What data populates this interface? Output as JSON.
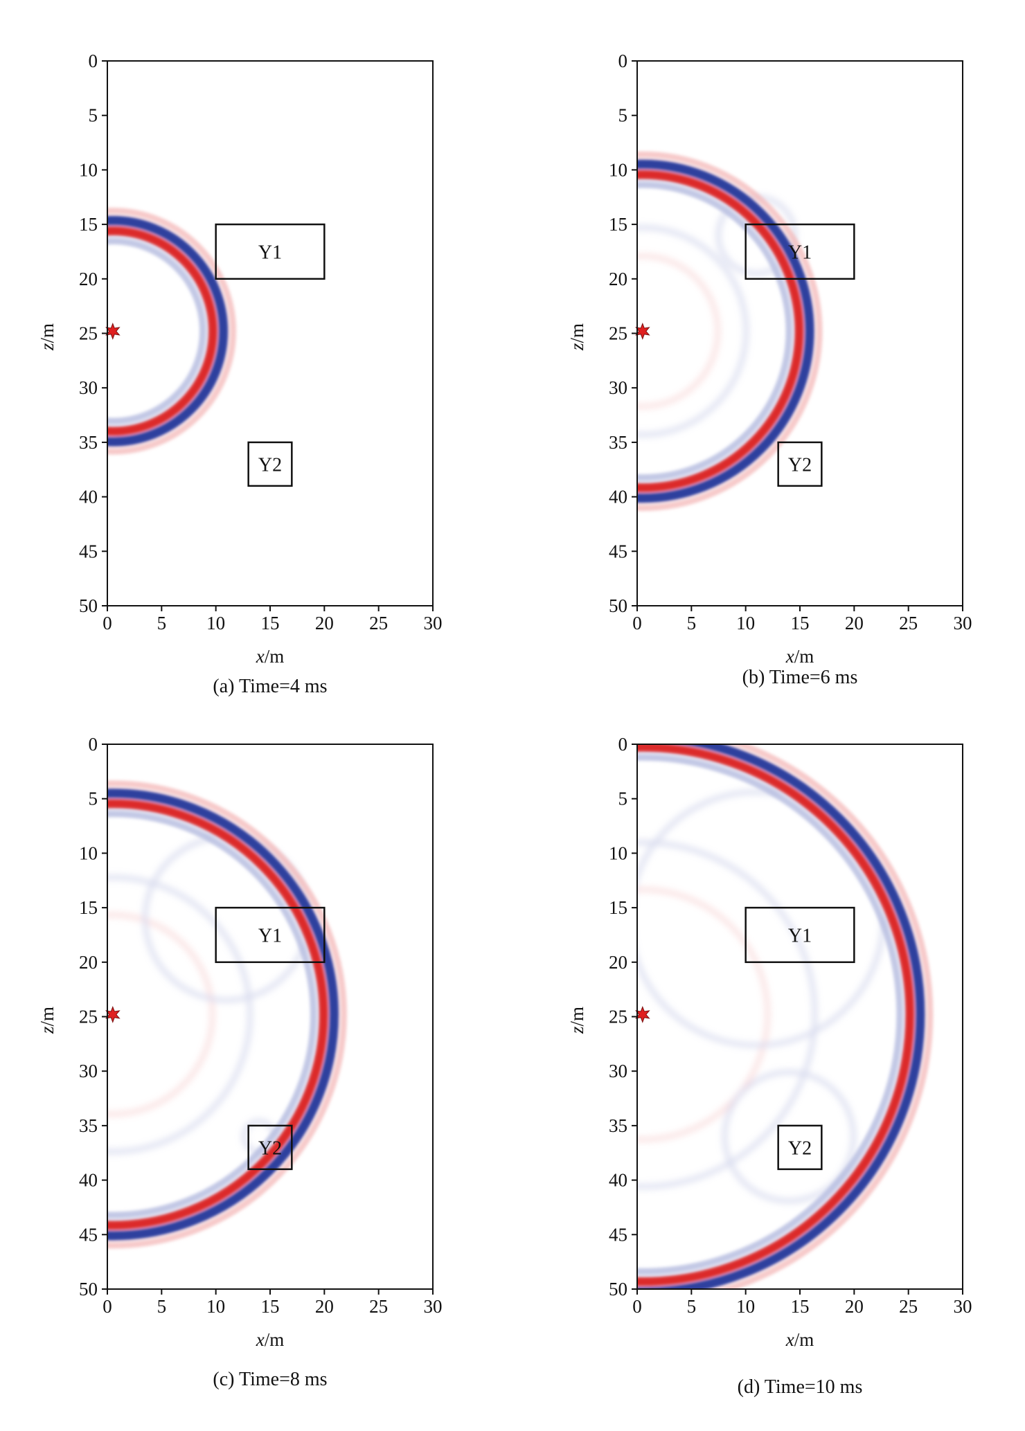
{
  "chart_data": [
    {
      "type": "heatmap",
      "panel": "a",
      "caption": "(a) Time=4 ms",
      "xlabel_var": "x",
      "xlabel_unit": "/m",
      "ylabel_var": "z",
      "ylabel_unit": "/m",
      "xlim": [
        0,
        30
      ],
      "ylim": [
        50,
        0
      ],
      "xticks": [
        0,
        5,
        10,
        15,
        20,
        25,
        30
      ],
      "yticks": [
        0,
        5,
        10,
        15,
        20,
        25,
        30,
        35,
        40,
        45,
        50
      ],
      "source": {
        "x": 0.5,
        "z": 24.8
      },
      "anomalies": [
        {
          "label": "Y1",
          "x0": 10,
          "x1": 20,
          "z0": 15,
          "z1": 20
        },
        {
          "label": "Y2",
          "x0": 13,
          "x1": 17,
          "z0": 35,
          "z1": 39
        }
      ],
      "wavefront_radius": 10.2
    },
    {
      "type": "heatmap",
      "panel": "b",
      "caption": "(b) Time=6 ms",
      "xlabel_var": "x",
      "xlabel_unit": "/m",
      "ylabel_var": "z",
      "ylabel_unit": "/m",
      "xlim": [
        0,
        30
      ],
      "ylim": [
        50,
        0
      ],
      "xticks": [
        0,
        5,
        10,
        15,
        20,
        25,
        30
      ],
      "yticks": [
        0,
        5,
        10,
        15,
        20,
        25,
        30,
        35,
        40,
        45,
        50
      ],
      "source": {
        "x": 0.5,
        "z": 24.8
      },
      "anomalies": [
        {
          "label": "Y1",
          "x0": 10,
          "x1": 20,
          "z0": 15,
          "z1": 20
        },
        {
          "label": "Y2",
          "x0": 13,
          "x1": 17,
          "z0": 35,
          "z1": 39
        }
      ],
      "wavefront_radius": 15.4
    },
    {
      "type": "heatmap",
      "panel": "c",
      "caption": "(c) Time=8 ms",
      "xlabel_var": "x",
      "xlabel_unit": "/m",
      "ylabel_var": "z",
      "ylabel_unit": "/m",
      "xlim": [
        0,
        30
      ],
      "ylim": [
        50,
        0
      ],
      "xticks": [
        0,
        5,
        10,
        15,
        20,
        25,
        30
      ],
      "yticks": [
        0,
        5,
        10,
        15,
        20,
        25,
        30,
        35,
        40,
        45,
        50
      ],
      "source": {
        "x": 0.5,
        "z": 24.8
      },
      "anomalies": [
        {
          "label": "Y1",
          "x0": 10,
          "x1": 20,
          "z0": 15,
          "z1": 20
        },
        {
          "label": "Y2",
          "x0": 13,
          "x1": 17,
          "z0": 35,
          "z1": 39
        }
      ],
      "wavefront_radius": 20.4
    },
    {
      "type": "heatmap",
      "panel": "d",
      "caption": "(d) Time=10 ms",
      "xlabel_var": "x",
      "xlabel_unit": "/m",
      "ylabel_var": "z",
      "ylabel_unit": "/m",
      "xlim": [
        0,
        30
      ],
      "ylim": [
        50,
        0
      ],
      "xticks": [
        0,
        5,
        10,
        15,
        20,
        25,
        30
      ],
      "yticks": [
        0,
        5,
        10,
        15,
        20,
        25,
        30,
        35,
        40,
        45,
        50
      ],
      "source": {
        "x": 0.5,
        "z": 24.8
      },
      "anomalies": [
        {
          "label": "Y1",
          "x0": 10,
          "x1": 20,
          "z0": 15,
          "z1": 20
        },
        {
          "label": "Y2",
          "x0": 13,
          "x1": 17,
          "z0": 35,
          "z1": 39
        }
      ],
      "wavefront_radius": 25.6
    }
  ],
  "colors": {
    "positive": "#dc2b2b",
    "negative": "#2e3f9e",
    "positive_faint": "#f3b4b4",
    "negative_faint": "#b7bde0",
    "source_marker": "#e02020",
    "axis": "#111111"
  }
}
